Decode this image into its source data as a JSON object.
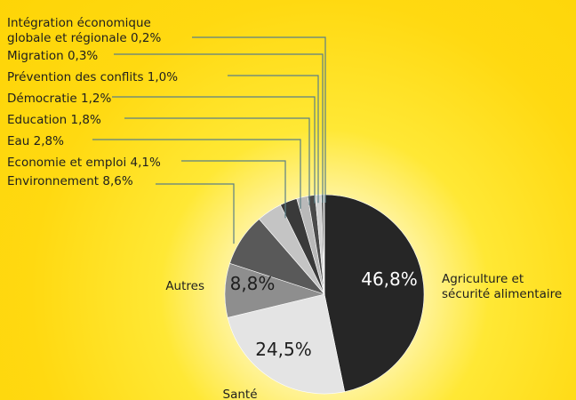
{
  "colors": {
    "background": "#ffd911",
    "leader": "#5b7f86",
    "agriculture": "#262626",
    "sante": "#e4e4e4",
    "autres": "#8e8e8e",
    "environnement": "#595959",
    "economie": "#c4c4c4",
    "eau": "#3a3a3a",
    "education": "#b9b9b9",
    "democratie": "#4a4a4a",
    "prevention": "#d0d0d0",
    "migration": "#303030",
    "integration": "#a8a8a8"
  },
  "chart_data": {
    "type": "pie",
    "start": "12 o'clock",
    "direction": "clockwise",
    "slices": [
      {
        "key": "agriculture",
        "label_lines": [
          "Agriculture et",
          "sécurité alimentaire"
        ],
        "value": 46.8,
        "value_text": "46,8%"
      },
      {
        "key": "sante",
        "label_lines": [
          "Santé"
        ],
        "value": 24.5,
        "value_text": "24,5%"
      },
      {
        "key": "autres",
        "label_lines": [
          "Autres"
        ],
        "value": 8.8,
        "value_text": "8,8%"
      },
      {
        "key": "environnement",
        "label_lines": [
          "Environnement 8,6%"
        ],
        "value": 8.6
      },
      {
        "key": "economie",
        "label_lines": [
          "Economie et emploi 4,1%"
        ],
        "value": 4.1
      },
      {
        "key": "eau",
        "label_lines": [
          "Eau 2,8%"
        ],
        "value": 2.8
      },
      {
        "key": "education",
        "label_lines": [
          "Education 1,8%"
        ],
        "value": 1.8
      },
      {
        "key": "democratie",
        "label_lines": [
          "Démocratie 1,2%"
        ],
        "value": 1.2
      },
      {
        "key": "prevention",
        "label_lines": [
          "Prévention des conflits 1,0%"
        ],
        "value": 1.0
      },
      {
        "key": "migration",
        "label_lines": [
          "Migration 0,3%"
        ],
        "value": 0.3
      },
      {
        "key": "integration",
        "label_lines": [
          "Intégration économique",
          "globale et régionale 0,2%"
        ],
        "value": 0.2
      }
    ]
  }
}
